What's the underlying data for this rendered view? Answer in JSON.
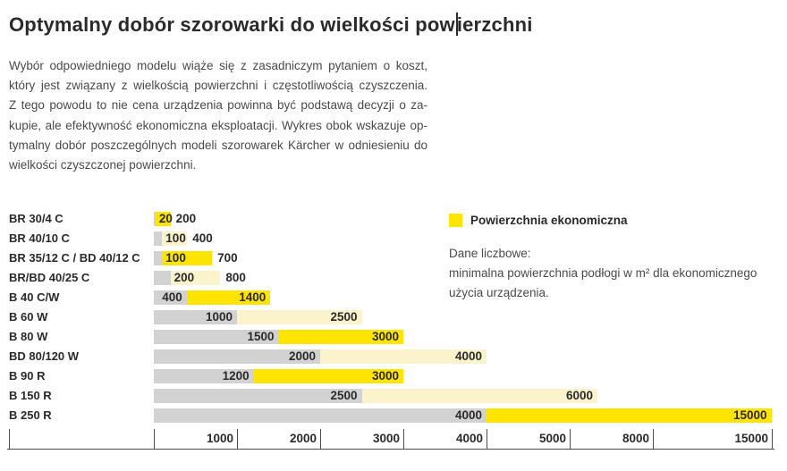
{
  "page": {
    "title_pre": "Optymalny dobór szorowarki do wielkości pow",
    "title_post": "ierzchni",
    "intro_lines": [
      "Wybór odpowiedniego modelu wiąże się z zasadniczym pytaniem o koszt,",
      "który jest związany z wielkością powierzchni i częstotliwością czyszczenia.",
      "Z tego powodu to nie cena urządzenia powinna być podstawą decyzji o za-",
      "kupie, ale efektywność ekonomiczna eksploatacji. Wykres obok wskazuje op-",
      "tymalny dobór poszczególnych modeli szorowarek Kärcher w odniesieniu do",
      "wielkości czyszczonej powierzchni."
    ]
  },
  "chart_data": {
    "type": "bar",
    "orientation": "horizontal",
    "title": "Optymalny dobór szorowarki do wielkości powierzchni",
    "unit": "m²",
    "legend": {
      "label": "Powierzchnia ekonomiczna",
      "position": "top-right"
    },
    "note_lines": [
      "Dane liczbowe:",
      "minimalna powierzchnia podłogi w m² dla ekonomicznego",
      "użycia urządzenia."
    ],
    "axis": {
      "ticks": [
        1000,
        2000,
        3000,
        4000,
        5000,
        8000,
        15000
      ],
      "range": [
        0,
        15000
      ],
      "scale": "piecewise-nonlinear"
    },
    "rows": [
      {
        "model": "BR 30/4 C",
        "min": 20,
        "economic_max": 200,
        "tone": "bright"
      },
      {
        "model": "BR 40/10 C",
        "min": 100,
        "economic_max": 400,
        "tone": "pale"
      },
      {
        "model": "BR 35/12 C / BD 40/12 C",
        "min": 100,
        "economic_max": 700,
        "tone": "bright"
      },
      {
        "model": "BR/BD 40/25 C",
        "min": 200,
        "economic_max": 800,
        "tone": "pale"
      },
      {
        "model": "B 40 C/W",
        "min": 400,
        "economic_max": 1400,
        "tone": "bright"
      },
      {
        "model": "B 60 W",
        "min": 1000,
        "economic_max": 2500,
        "tone": "pale"
      },
      {
        "model": "B 80 W",
        "min": 1500,
        "economic_max": 3000,
        "tone": "bright"
      },
      {
        "model": "BD 80/120 W",
        "min": 2000,
        "economic_max": 4000,
        "tone": "pale"
      },
      {
        "model": "B 90 R",
        "min": 1200,
        "economic_max": 3000,
        "tone": "bright"
      },
      {
        "model": "B 150 R",
        "min": 2500,
        "economic_max": 6000,
        "tone": "pale"
      },
      {
        "model": "B 250 R",
        "min": 4000,
        "economic_max": 15000,
        "tone": "bright"
      }
    ],
    "colors": {
      "bright": "#FFE400",
      "pale": "#FAF3CC",
      "gray": "#D2D2D2"
    }
  }
}
